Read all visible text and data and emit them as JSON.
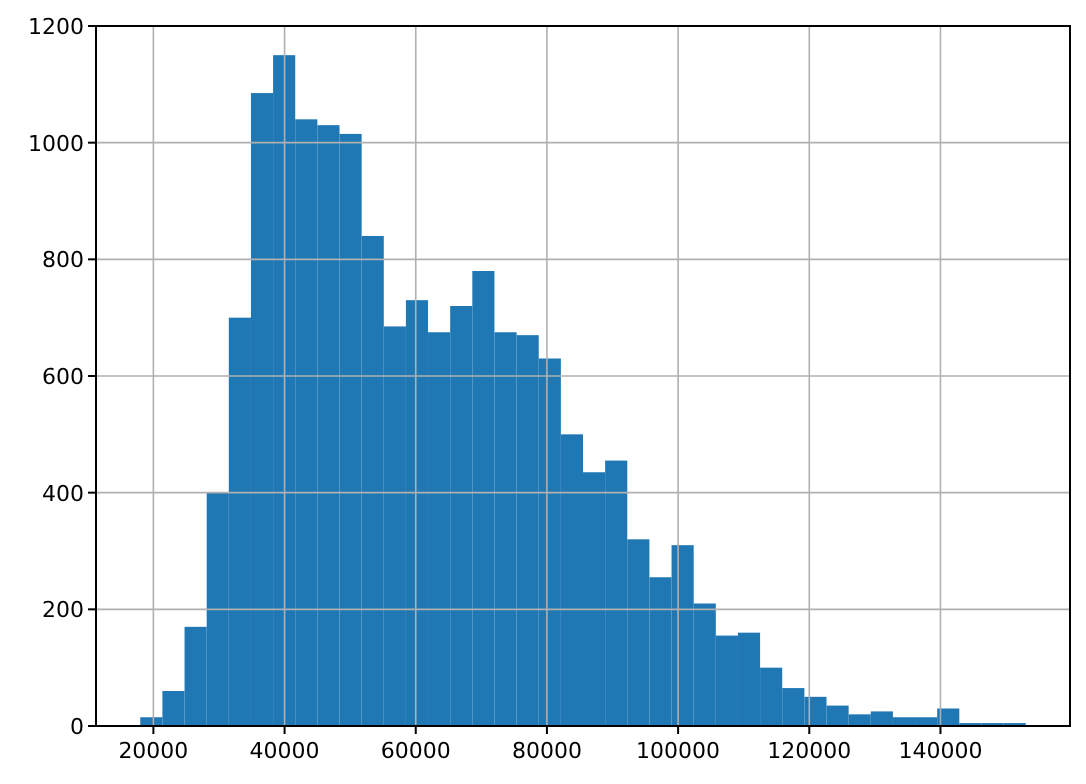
{
  "chart_data": {
    "type": "histogram",
    "color": "#1f77b4",
    "bins": [
      18000,
      21375,
      24750,
      28125,
      31500,
      34875,
      38250,
      41625,
      45000,
      48375,
      51750,
      55125,
      58500,
      61875,
      65250,
      68625,
      72000,
      75375,
      78750,
      82125,
      85500,
      88875,
      92250,
      95625,
      99000,
      102375,
      105750,
      109125,
      112500,
      115875,
      119250,
      122625,
      126000,
      129375,
      132750,
      136125,
      139500,
      142875,
      146250,
      149625,
      153000
    ],
    "values": [
      15,
      60,
      170,
      400,
      700,
      1085,
      1150,
      1040,
      1030,
      1015,
      840,
      685,
      730,
      675,
      720,
      780,
      675,
      670,
      630,
      500,
      435,
      455,
      320,
      255,
      310,
      210,
      155,
      160,
      100,
      65,
      50,
      35,
      20,
      25,
      15,
      15,
      30,
      5,
      5,
      5
    ],
    "xlim": [
      11250,
      159750
    ],
    "xticks": [
      20000,
      40000,
      60000,
      80000,
      100000,
      120000,
      140000
    ],
    "ylim": [
      0,
      1200
    ],
    "yticks": [
      0,
      200,
      400,
      600,
      800,
      1000,
      1200
    ],
    "grid": true
  }
}
